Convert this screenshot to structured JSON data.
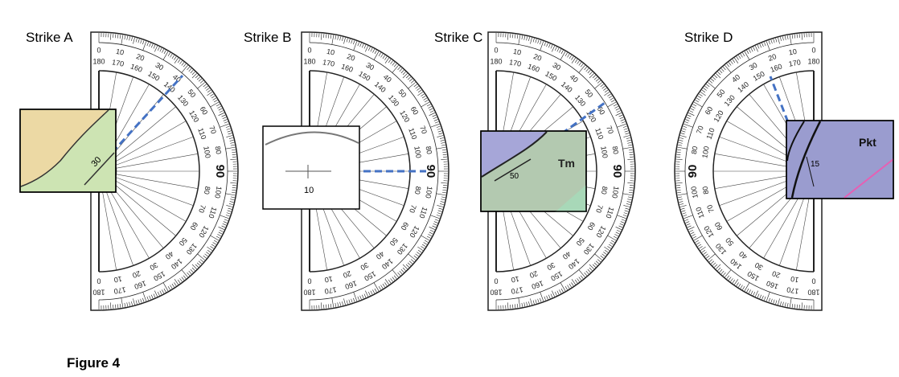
{
  "panels": [
    {
      "title": "Strike A",
      "inset": {
        "labels": [
          "30"
        ]
      }
    },
    {
      "title": "Strike B",
      "inset": {
        "labels": [
          "10"
        ]
      }
    },
    {
      "title": "Strike C",
      "inset": {
        "labels": [
          "50",
          "Tm"
        ]
      }
    },
    {
      "title": "Strike D",
      "inset": {
        "labels": [
          "15",
          "Pkt"
        ]
      }
    }
  ],
  "scale": {
    "degrees": [
      "0",
      "10",
      "20",
      "30",
      "40",
      "50",
      "60",
      "70",
      "80",
      "90",
      "100",
      "110",
      "120",
      "130",
      "140",
      "150",
      "160",
      "170",
      "180"
    ]
  },
  "caption": "Figure 4"
}
